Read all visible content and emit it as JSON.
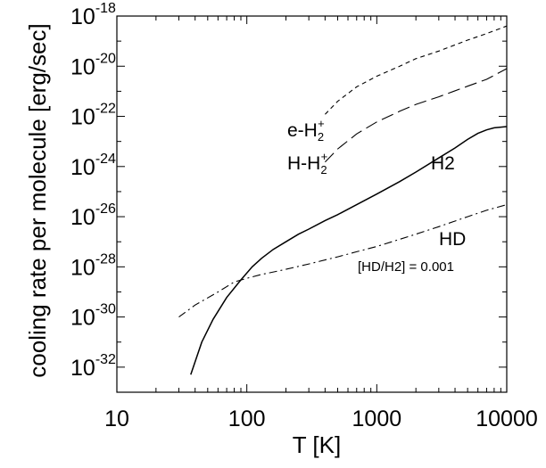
{
  "chart_data": {
    "type": "line",
    "xlabel": "T [K]",
    "ylabel": "cooling rate per molecule [erg/sec]",
    "x_scale": "log",
    "y_scale": "log",
    "xlim": [
      10,
      10000
    ],
    "ylim": [
      1e-33,
      1e-18
    ],
    "x_ticks": [
      {
        "value": 10,
        "label": "10"
      },
      {
        "value": 100,
        "label": "100"
      },
      {
        "value": 1000,
        "label": "1000"
      },
      {
        "value": 10000,
        "label": "10000"
      }
    ],
    "y_ticks": [
      {
        "value": 1e-18,
        "base": "10",
        "exp": "-18"
      },
      {
        "value": 1e-20,
        "base": "10",
        "exp": "-20"
      },
      {
        "value": 1e-22,
        "base": "10",
        "exp": "-22"
      },
      {
        "value": 1e-24,
        "base": "10",
        "exp": "-24"
      },
      {
        "value": 1e-26,
        "base": "10",
        "exp": "-26"
      },
      {
        "value": 1e-28,
        "base": "10",
        "exp": "-28"
      },
      {
        "value": 1e-30,
        "base": "10",
        "exp": "-30"
      },
      {
        "value": 1e-32,
        "base": "10",
        "exp": "-32"
      }
    ],
    "grid": false,
    "series": [
      {
        "name": "H2",
        "style": "solid",
        "x": [
          37,
          45,
          55,
          70,
          90,
          110,
          130,
          160,
          200,
          250,
          300,
          400,
          500,
          700,
          1000,
          1500,
          2000,
          3000,
          4000,
          5000,
          6000,
          7000,
          8000,
          10000
        ],
        "y": [
          5e-33,
          1e-31,
          8e-31,
          6e-30,
          3e-29,
          1e-28,
          2.2e-28,
          5e-28,
          1e-27,
          2e-27,
          3.2e-27,
          7e-27,
          1.2e-26,
          3e-26,
          8e-26,
          2.5e-25,
          6e-25,
          2.2e-24,
          5.5e-24,
          1.2e-23,
          2.1e-23,
          2.9e-23,
          3.5e-23,
          3.9e-23
        ]
      },
      {
        "name": "HD",
        "style": "dash-dot",
        "x": [
          30,
          40,
          60,
          80,
          100,
          130,
          150,
          200,
          300,
          500,
          700,
          1000,
          2000,
          3000,
          5000,
          7000,
          10000
        ],
        "y": [
          1e-30,
          3e-30,
          1e-29,
          2.5e-29,
          3.5e-29,
          5e-29,
          5.8e-29,
          8e-29,
          1.3e-28,
          2.5e-28,
          4e-28,
          6.5e-28,
          2e-27,
          4e-27,
          1e-26,
          1.8e-26,
          3e-26
        ]
      },
      {
        "name": "e-H2+",
        "style": "dashed",
        "x": [
          400,
          500,
          700,
          1000,
          1500,
          2000,
          3000,
          5000,
          7000,
          10000
        ],
        "y": [
          1.2e-22,
          4e-22,
          1.5e-21,
          4e-21,
          1e-20,
          2e-20,
          4e-20,
          1.1e-19,
          2e-19,
          4e-19
        ]
      },
      {
        "name": "H-H2+",
        "style": "long-dash",
        "x": [
          400,
          500,
          700,
          1000,
          1500,
          2000,
          3000,
          5000,
          7000,
          10000
        ],
        "y": [
          1.5e-24,
          5e-24,
          2e-23,
          6e-23,
          1.6e-22,
          3e-22,
          6e-22,
          1.6e-21,
          3e-21,
          8e-21
        ]
      }
    ],
    "annotations": {
      "eh2": {
        "base": "e-H",
        "sub": "2",
        "sup": "+"
      },
      "hh2": {
        "base": "H-H",
        "sub": "2",
        "sup": "+"
      },
      "h2": "H2",
      "hd": "HD",
      "ratio": "[HD/H2] = 0.001"
    }
  }
}
